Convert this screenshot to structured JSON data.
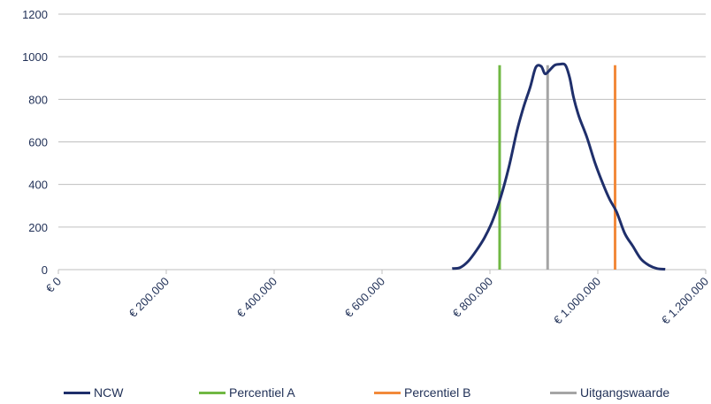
{
  "chart_data": {
    "type": "line",
    "title": "",
    "xlabel": "",
    "ylabel": "",
    "xlim": [
      0,
      1200000
    ],
    "ylim": [
      0,
      1200
    ],
    "x_ticks": [
      0,
      200000,
      400000,
      600000,
      800000,
      1000000,
      1200000
    ],
    "x_tick_labels": [
      "€ 0",
      "€ 200.000",
      "€ 400.000",
      "€ 600.000",
      "€ 800.000",
      "€ 1.000.000",
      "€ 1.200.000"
    ],
    "y_ticks": [
      0,
      200,
      400,
      600,
      800,
      1000,
      1200
    ],
    "y_tick_labels": [
      "0",
      "200",
      "400",
      "600",
      "800",
      "1000",
      "1200"
    ],
    "grid": "horizontal",
    "legend_position": "bottom",
    "series": [
      {
        "name": "NCW",
        "color": "#1f2f6b",
        "x": [
          730000,
          745000,
          760000,
          775000,
          790000,
          805000,
          820000,
          835000,
          850000,
          862000,
          875000,
          885000,
          895000,
          902000,
          910000,
          920000,
          930000,
          940000,
          948000,
          955000,
          965000,
          980000,
          995000,
          1010000,
          1022000,
          1035000,
          1050000,
          1065000,
          1080000,
          1095000,
          1110000,
          1125000
        ],
        "y": [
          5,
          10,
          40,
          90,
          150,
          230,
          340,
          480,
          650,
          760,
          860,
          950,
          955,
          920,
          935,
          960,
          965,
          960,
          900,
          810,
          720,
          620,
          500,
          400,
          330,
          270,
          170,
          110,
          50,
          20,
          5,
          2
        ]
      },
      {
        "name": "Percentiel A",
        "color": "#70b843",
        "type": "vline",
        "x": 818000,
        "y_range": [
          0,
          960
        ]
      },
      {
        "name": "Percentiel B",
        "color": "#f28a3b",
        "type": "vline",
        "x": 1032000,
        "y_range": [
          0,
          960
        ]
      },
      {
        "name": "Uitgangswaarde",
        "color": "#a5a5a5",
        "type": "vline",
        "x": 907000,
        "y_range": [
          0,
          960
        ]
      }
    ]
  }
}
